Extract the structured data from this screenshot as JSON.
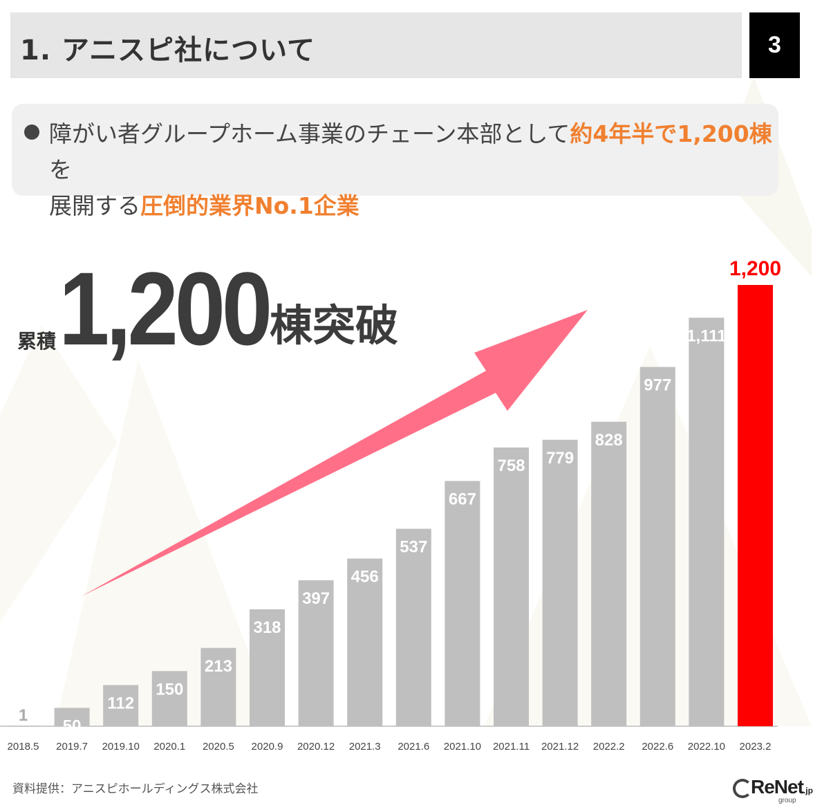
{
  "header": {
    "title": "1.  アニスピ社について",
    "page_number": "3"
  },
  "summary": {
    "line1_pre": "障がい者グループホーム事業のチェーン本部として",
    "line1_hl": "約4年半で1,200棟",
    "line1_post": "を",
    "line2_pre": "展開する",
    "line2_hl": "圧倒的業界No.1企業"
  },
  "headline": {
    "prefix": "累積",
    "number": "1,200",
    "suffix": "棟突破"
  },
  "chart_data": {
    "type": "bar",
    "categories": [
      "2018.5",
      "2019.7",
      "2019.10",
      "2020.1",
      "2020.5",
      "2020.9",
      "2020.12",
      "2021.3",
      "2021.6",
      "2021.10",
      "2021.11",
      "2021.12",
      "2022.2",
      "2022.6",
      "2022.10",
      "2023.2"
    ],
    "values": [
      1,
      50,
      112,
      150,
      213,
      318,
      397,
      456,
      537,
      667,
      758,
      779,
      828,
      977,
      1111,
      1200
    ],
    "labels": [
      "1",
      "50",
      "112",
      "150",
      "213",
      "318",
      "397",
      "456",
      "537",
      "667",
      "758",
      "779",
      "828",
      "977",
      "1,111",
      "1,200"
    ],
    "highlight_index": 15,
    "colors": {
      "bar": "#bfbfbf",
      "highlight": "#ff0000",
      "arrow": "#ff7088",
      "label": "#ffffff",
      "first_label": "#aaaaaa",
      "axis_text": "#444444"
    }
  },
  "footer": {
    "source": "資料提供：アニスピホールディングス株式会社",
    "logo": "ReNet",
    "logo_suffix": ".jp",
    "logo_group": "group"
  }
}
